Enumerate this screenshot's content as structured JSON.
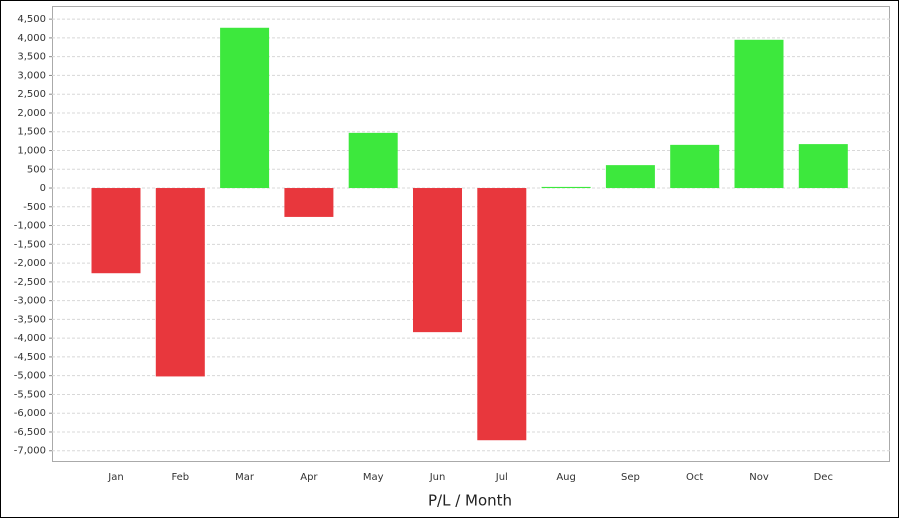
{
  "chart_data": {
    "type": "bar",
    "x_label": "P/L / Month",
    "categories": [
      "Jan",
      "Feb",
      "Mar",
      "Apr",
      "May",
      "Jun",
      "Jul",
      "Aug",
      "Sep",
      "Oct",
      "Nov",
      "Dec"
    ],
    "values": [
      -2270,
      -5020,
      4270,
      -770,
      1470,
      -3840,
      -6720,
      30,
      610,
      1150,
      3950,
      1170
    ],
    "positive_color": "#3de83d",
    "negative_color": "#e8373d",
    "ylim": [
      -7300,
      4850
    ],
    "yticks": [
      {
        "value": 4500,
        "label": "4,500"
      },
      {
        "value": 4000,
        "label": "4,000"
      },
      {
        "value": 3500,
        "label": "3,500"
      },
      {
        "value": 3000,
        "label": "3,000"
      },
      {
        "value": 2500,
        "label": "2,500"
      },
      {
        "value": 2000,
        "label": "2,000"
      },
      {
        "value": 1500,
        "label": "1,500"
      },
      {
        "value": 1000,
        "label": "1,000"
      },
      500,
      0,
      -500,
      {
        "value": -1000,
        "label": "-1,000"
      },
      {
        "value": -1500,
        "label": "-1,500"
      },
      {
        "value": -2000,
        "label": "-2,000"
      },
      {
        "value": -2500,
        "label": "-2,500"
      },
      {
        "value": -3000,
        "label": "-3,000"
      },
      {
        "value": -3500,
        "label": "-3,500"
      },
      {
        "value": -4000,
        "label": "-4,000"
      },
      {
        "value": -4500,
        "label": "-4,500"
      },
      {
        "value": -5000,
        "label": "-5,000"
      },
      {
        "value": -5500,
        "label": "-5,500"
      },
      {
        "value": -6000,
        "label": "-6,000"
      },
      {
        "value": -6500,
        "label": "-6,500"
      },
      {
        "value": -7000,
        "label": "-7,000"
      }
    ],
    "grid": true
  }
}
